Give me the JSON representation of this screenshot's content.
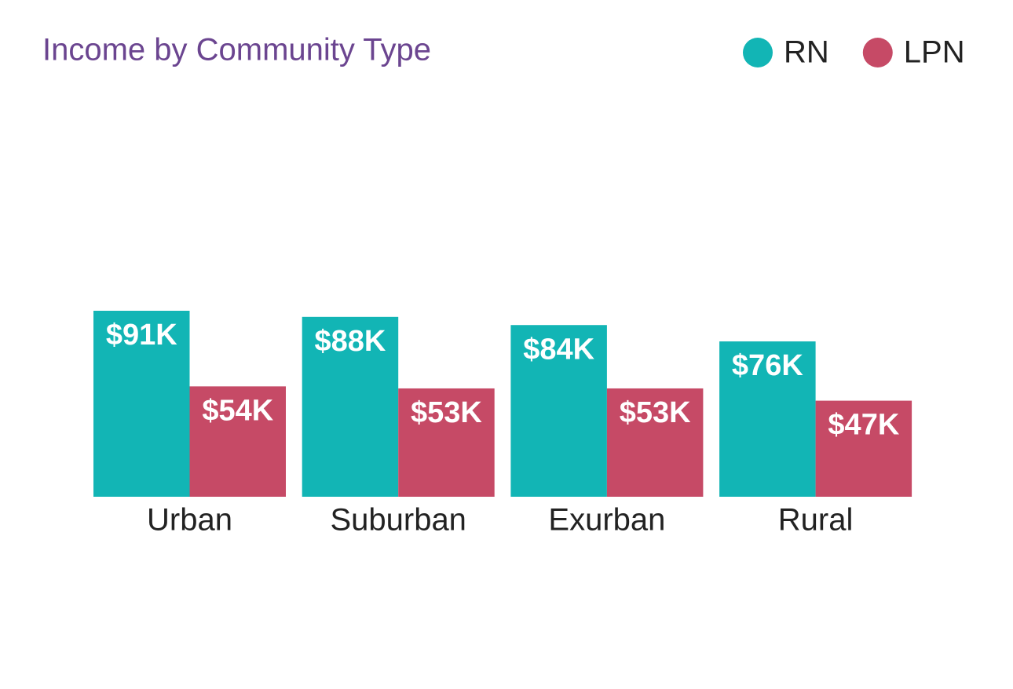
{
  "chart_data": {
    "type": "bar",
    "title": "Income by Community Type",
    "categories": [
      "Urban",
      "Suburban",
      "Exurban",
      "Rural"
    ],
    "series": [
      {
        "name": "RN",
        "color": "#12b5b5",
        "values": [
          91,
          88,
          84,
          76
        ],
        "value_labels": [
          "$91K",
          "$88K",
          "$84K",
          "$76K"
        ]
      },
      {
        "name": "LPN",
        "color": "#c64a66",
        "values": [
          54,
          53,
          53,
          47
        ],
        "value_labels": [
          "$54K",
          "$53K",
          "$53K",
          "$47K"
        ]
      }
    ],
    "legend": "top-right"
  }
}
